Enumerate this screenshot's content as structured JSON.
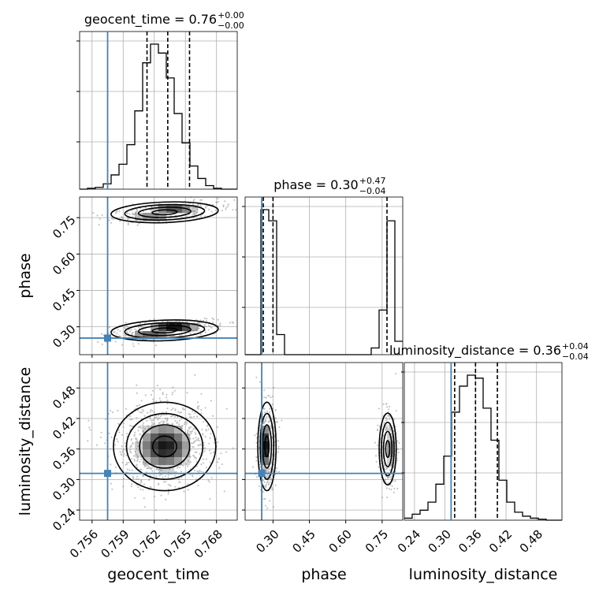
{
  "chart_data": {
    "type": "corner",
    "parameters": [
      "geocent_time",
      "phase",
      "luminosity_distance"
    ],
    "ranges": {
      "geocent_time": [
        0.7548,
        0.77
      ],
      "phase": [
        0.185,
        0.835
      ],
      "luminosity_distance": [
        0.22,
        0.53
      ]
    },
    "ticks": {
      "geocent_time": [
        "0.756",
        "0.759",
        "0.762",
        "0.765",
        "0.768"
      ],
      "phase": [
        "0.30",
        "0.45",
        "0.60",
        "0.75"
      ],
      "luminosity_distance": [
        "0.24",
        "0.30",
        "0.36",
        "0.42",
        "0.48"
      ]
    },
    "truths": {
      "geocent_time": 0.7575,
      "phase": 0.2535,
      "luminosity_distance": 0.312
    },
    "truth_color": "#4682b4",
    "titles": {
      "geocent_time": {
        "prefix": "geocent_time = 0.76",
        "plus": "+0.00",
        "minus": "−0.00"
      },
      "phase": {
        "prefix": "phase = 0.30",
        "plus": "+0.47",
        "minus": "−0.04"
      },
      "luminosity_distance": {
        "prefix": "luminosity_distance = 0.36",
        "plus": "+0.04",
        "minus": "−0.04"
      }
    },
    "quantiles": {
      "geocent_time": [
        0.7613,
        0.7633,
        0.7654
      ],
      "phase": [
        0.26,
        0.3,
        0.77
      ],
      "luminosity_distance": [
        0.319,
        0.36,
        0.403
      ]
    },
    "histograms": {
      "geocent_time": {
        "bin_start": 0.7548,
        "bin_width": 0.00076,
        "counts": [
          0,
          1,
          2,
          6,
          16,
          28,
          50,
          88,
          142,
          163,
          153,
          125,
          85,
          52,
          26,
          12,
          4,
          1,
          0,
          0
        ]
      },
      "phase": {
        "bin_start": 0.185,
        "bin_width": 0.0325,
        "counts": [
          0,
          0,
          130,
          120,
          18,
          0,
          0,
          0,
          0,
          0,
          0,
          0,
          0,
          0,
          0,
          0,
          6,
          40,
          120,
          12
        ]
      },
      "luminosity_distance": {
        "bin_start": 0.22,
        "bin_width": 0.0155,
        "counts": [
          2,
          6,
          10,
          18,
          36,
          64,
          108,
          134,
          145,
          142,
          112,
          80,
          40,
          18,
          8,
          4,
          2,
          1,
          0,
          0
        ]
      }
    },
    "blobs": {
      "phase_vs_geocent_time": [
        {
          "cx": 0.763,
          "cy": 0.772,
          "sx": 0.0022,
          "sy": 0.018,
          "rho": 0.55,
          "weight": 0.45
        },
        {
          "cx": 0.763,
          "cy": 0.285,
          "sx": 0.0022,
          "sy": 0.018,
          "rho": 0.55,
          "weight": 0.55
        }
      ],
      "luminosity_distance_vs_geocent_time": [
        {
          "cx": 0.763,
          "cy": 0.365,
          "sx": 0.0021,
          "sy": 0.037,
          "rho": 0.0,
          "weight": 1.0
        }
      ],
      "luminosity_distance_vs_phase": [
        {
          "cx": 0.275,
          "cy": 0.365,
          "sx": 0.016,
          "sy": 0.037,
          "rho": 0.0,
          "weight": 0.55
        },
        {
          "cx": 0.773,
          "cy": 0.36,
          "sx": 0.015,
          "sy": 0.03,
          "rho": 0.0,
          "weight": 0.45
        }
      ]
    },
    "grid": true
  }
}
